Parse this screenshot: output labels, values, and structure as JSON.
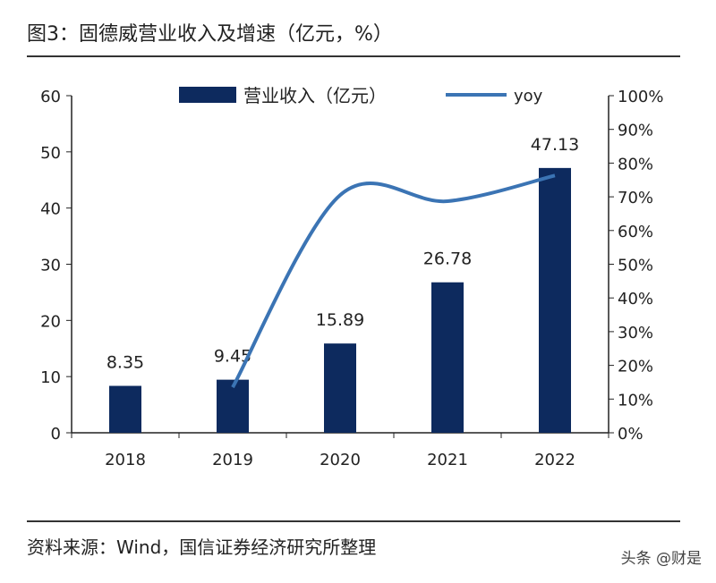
{
  "title": "图3：固德威营业收入及增速（亿元，%）",
  "source": "资料来源：Wind，国信证券经济研究所整理",
  "watermark": "头条 @财是",
  "chart_data": {
    "type": "bar",
    "categories": [
      "2018",
      "2019",
      "2020",
      "2021",
      "2022"
    ],
    "series": [
      {
        "name": "营业收入（亿元）",
        "type": "bar",
        "axis": "left",
        "color": "#0d2a5e",
        "values": [
          8.35,
          9.45,
          15.89,
          26.78,
          47.13
        ],
        "labels": [
          "8.35",
          "9.45",
          "15.89",
          "26.78",
          "47.13"
        ]
      },
      {
        "name": "yoy",
        "type": "line",
        "axis": "right",
        "color": "#3b74b4",
        "values": [
          null,
          13.5,
          70.5,
          68.7,
          76.3
        ]
      }
    ],
    "left_axis": {
      "ylim": [
        0,
        60
      ],
      "ticks": [
        "0",
        "10",
        "20",
        "30",
        "40",
        "50",
        "60"
      ]
    },
    "right_axis": {
      "ylim": [
        0,
        100
      ],
      "ticks": [
        "0%",
        "10%",
        "20%",
        "30%",
        "40%",
        "50%",
        "60%",
        "70%",
        "80%",
        "90%",
        "100%"
      ]
    },
    "legend": "top-center",
    "grid": false
  }
}
